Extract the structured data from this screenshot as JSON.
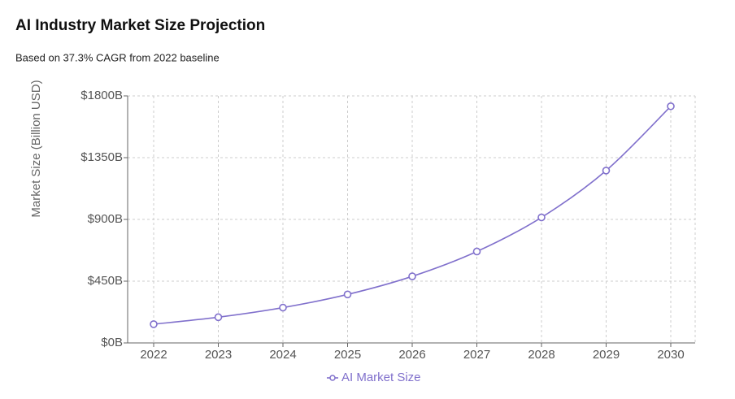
{
  "chart_data": {
    "type": "line",
    "title": "AI Industry Market Size Projection",
    "subtitle": "Based on 37.3% CAGR from 2022 baseline",
    "y_label": "Market Size (Billion USD)",
    "categories": [
      "2022",
      "2023",
      "2024",
      "2025",
      "2026",
      "2027",
      "2028",
      "2029",
      "2030"
    ],
    "series": [
      {
        "name": "AI Market Size",
        "color": "#8070cc",
        "values": [
          136.6,
          187.5,
          257.4,
          353.4,
          485.2,
          666.2,
          914.7,
          1255.9,
          1724.3
        ]
      }
    ],
    "ylim": [
      0,
      1800
    ],
    "yticks": [
      {
        "value": 0,
        "label": "$0B"
      },
      {
        "value": 450,
        "label": "$450B"
      },
      {
        "value": 900,
        "label": "$900B"
      },
      {
        "value": 1350,
        "label": "$1350B"
      },
      {
        "value": 1800,
        "label": "$1800B"
      }
    ],
    "grid": true,
    "legend": "bottom"
  }
}
